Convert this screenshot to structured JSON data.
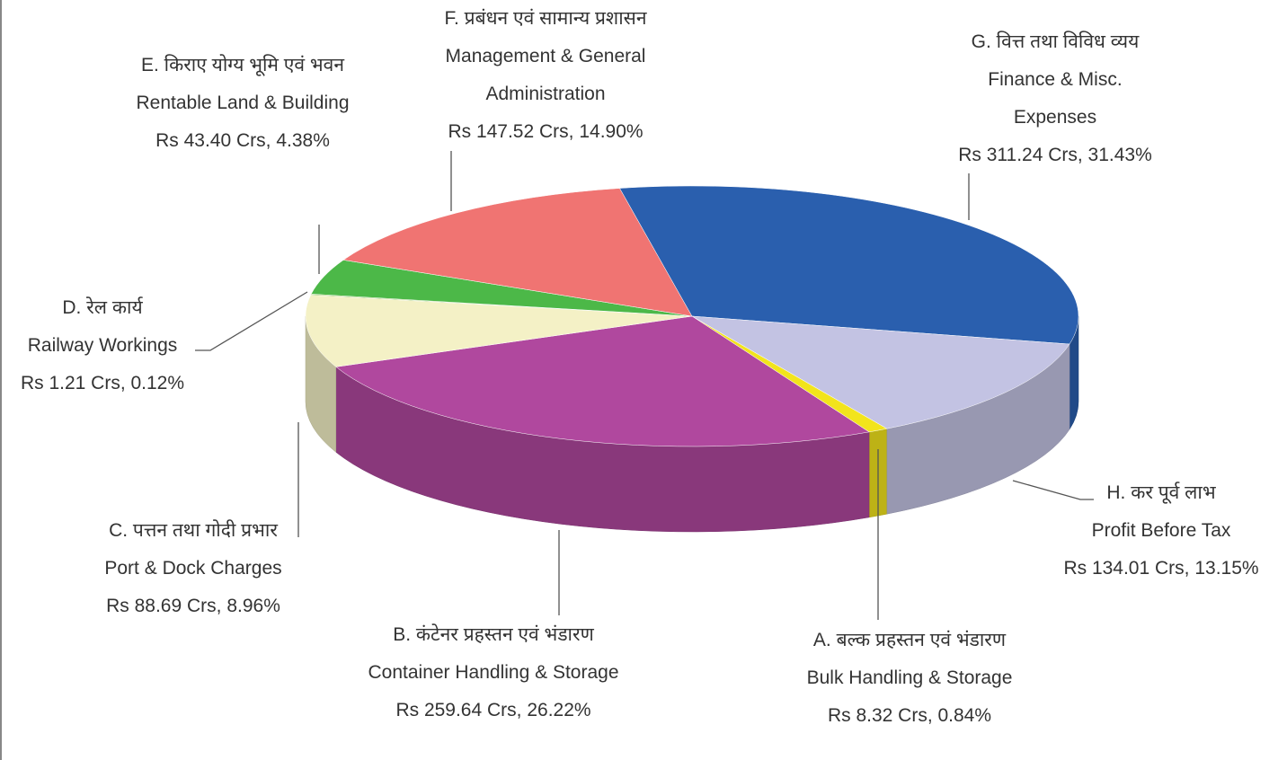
{
  "chart_data": {
    "type": "pie3d",
    "hindi_labels": [
      "A. बल्क प्रहस्तन एवं भंडारण",
      "B. कंटेनर प्रहस्तन एवं भंडारण",
      "C. पत्तन तथा गोदी प्रभार",
      "D. रेल कार्य",
      "E. किराए योग्य भूमि एवं भवन",
      "F. प्रबंधन एवं सामान्य प्रशासन",
      "G. वित्त तथा विविध व्यय",
      "H. कर पूर्व लाभ"
    ],
    "categories": [
      "Bulk Handling & Storage",
      "Container Handling & Storage",
      "Port & Dock Charges",
      "Railway Workings",
      "Rentable Land & Building",
      "Management & General Administration",
      "Finance & Misc. Expenses",
      "Profit Before Tax"
    ],
    "values": [
      0.84,
      26.22,
      8.96,
      0.12,
      4.38,
      14.9,
      31.43,
      13.15
    ],
    "value_labels": [
      "Rs 8.32 Crs, 0.84%",
      "Rs 259.64 Crs, 26.22%",
      "Rs 88.69 Crs, 8.96%",
      "Rs 1.21 Crs, 0.12%",
      "Rs 43.40 Crs, 4.38%",
      "Rs 147.52 Crs, 14.90%",
      "Rs 311.24 Crs, 31.43%",
      "Rs 134.01 Crs, 13.15%"
    ],
    "colors": [
      "#f2e41c",
      "#b0489e",
      "#f4f1c6",
      "#8fbf4f",
      "#4cb848",
      "#f07472",
      "#2a5fae",
      "#c3c3e3"
    ]
  }
}
